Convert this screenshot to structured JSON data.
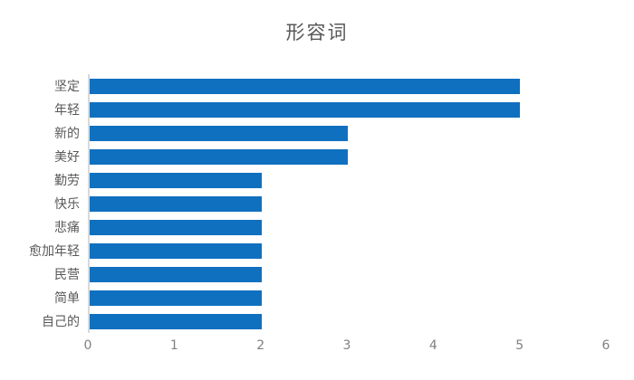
{
  "chart_data": {
    "type": "bar",
    "orientation": "horizontal",
    "title": "形容词",
    "categories": [
      "坚定",
      "年轻",
      "新的",
      "美好",
      "勤劳",
      "快乐",
      "悲痛",
      "愈加年轻",
      "民营",
      "简单",
      "自己的"
    ],
    "values": [
      5,
      5,
      3,
      3,
      2,
      2,
      2,
      2,
      2,
      2,
      2
    ],
    "xlabel": "",
    "ylabel": "",
    "xlim": [
      0,
      6
    ],
    "xticks": [
      "0",
      "1",
      "2",
      "3",
      "4",
      "5",
      "6"
    ],
    "grid": false,
    "legend": false,
    "colors": {
      "bar": "#0F70C0",
      "title": "#595959",
      "category_label": "#595959",
      "tick_label": "#808080",
      "axis_line": "#D9D9D9",
      "background": "#FFFFFF"
    }
  }
}
